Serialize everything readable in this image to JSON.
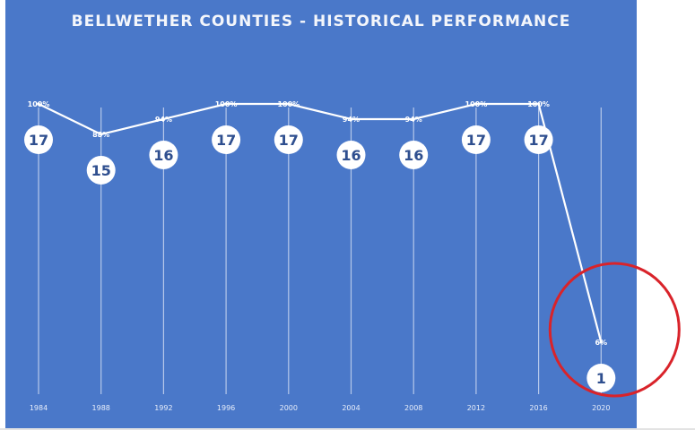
{
  "title": "BELLWETHER COUNTIES - HISTORICAL PERFORMANCE",
  "colors": {
    "background": "#4a78c9",
    "line": "#ffffff",
    "node_fill": "#ffffff",
    "node_text": "#2f4f8f",
    "highlight_circle": "#d9232a"
  },
  "chart_data": {
    "type": "line",
    "title": "BELLWETHER COUNTIES - HISTORICAL PERFORMANCE",
    "categories": [
      "1984",
      "1988",
      "1992",
      "1996",
      "2000",
      "2004",
      "2008",
      "2012",
      "2016",
      "2020"
    ],
    "series": [
      {
        "values": [
          100,
          88,
          94,
          100,
          100,
          94,
          94,
          100,
          100,
          6
        ],
        "labels": [
          "100%",
          "88%",
          "94%",
          "100%",
          "100%",
          "94%",
          "94%",
          "100%",
          "100%",
          "6%"
        ]
      }
    ],
    "counts": [
      17,
      15,
      16,
      17,
      17,
      16,
      16,
      17,
      17,
      1
    ],
    "ylim": [
      0,
      100
    ],
    "grid": "vertical-lines",
    "legend": "none",
    "highlight": {
      "category": "2020",
      "shape": "circle",
      "color": "#d9232a"
    }
  }
}
